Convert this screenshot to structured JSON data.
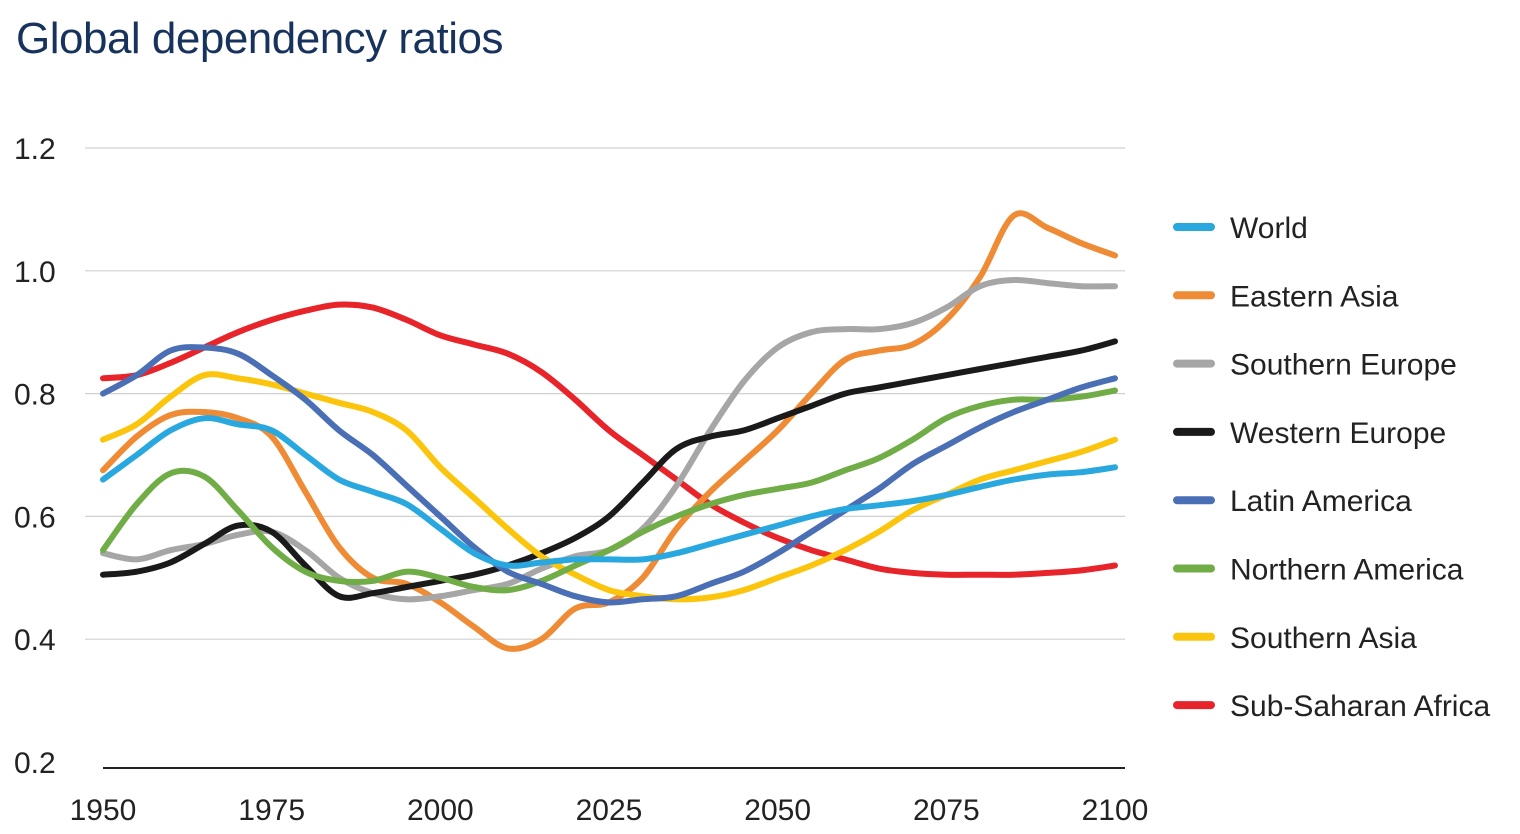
{
  "chart_data": {
    "type": "line",
    "title": "Global dependency ratios",
    "xlabel": "",
    "ylabel": "",
    "xlim": [
      1950,
      2100
    ],
    "ylim": [
      0.2,
      1.2
    ],
    "xticks": [
      "1950",
      "1975",
      "2000",
      "2025",
      "2050",
      "2075",
      "2100"
    ],
    "yticks": [
      "0.2",
      "0.4",
      "0.6",
      "0.8",
      "1.0",
      "1.2"
    ],
    "grid": "horizontal",
    "legend_position": "right",
    "x": [
      1950,
      1955,
      1960,
      1965,
      1970,
      1975,
      1980,
      1985,
      1990,
      1995,
      2000,
      2005,
      2010,
      2015,
      2020,
      2025,
      2030,
      2035,
      2040,
      2045,
      2050,
      2055,
      2060,
      2065,
      2070,
      2075,
      2080,
      2085,
      2090,
      2095,
      2100
    ],
    "series": [
      {
        "name": "World",
        "color": "#29a8e0",
        "values": [
          0.66,
          0.7,
          0.74,
          0.76,
          0.75,
          0.74,
          0.7,
          0.66,
          0.64,
          0.62,
          0.58,
          0.54,
          0.52,
          0.525,
          0.53,
          0.53,
          0.53,
          0.54,
          0.555,
          0.57,
          0.585,
          0.6,
          0.612,
          0.618,
          0.625,
          0.635,
          0.648,
          0.66,
          0.668,
          0.672,
          0.68
        ]
      },
      {
        "name": "Eastern Asia",
        "color": "#ef8a35",
        "values": [
          0.675,
          0.73,
          0.765,
          0.77,
          0.76,
          0.73,
          0.64,
          0.55,
          0.5,
          0.49,
          0.46,
          0.42,
          0.385,
          0.4,
          0.45,
          0.46,
          0.5,
          0.58,
          0.64,
          0.69,
          0.74,
          0.8,
          0.855,
          0.87,
          0.88,
          0.92,
          0.99,
          1.09,
          1.07,
          1.045,
          1.025
        ]
      },
      {
        "name": "Southern Europe",
        "color": "#a6a6a6",
        "values": [
          0.54,
          0.53,
          0.545,
          0.555,
          0.57,
          0.575,
          0.545,
          0.5,
          0.475,
          0.465,
          0.47,
          0.48,
          0.49,
          0.515,
          0.535,
          0.545,
          0.58,
          0.65,
          0.74,
          0.82,
          0.875,
          0.9,
          0.905,
          0.905,
          0.915,
          0.94,
          0.975,
          0.985,
          0.98,
          0.975,
          0.975
        ]
      },
      {
        "name": "Western Europe",
        "color": "#1a1a1a",
        "values": [
          0.505,
          0.51,
          0.525,
          0.555,
          0.585,
          0.575,
          0.52,
          0.47,
          0.475,
          0.485,
          0.495,
          0.505,
          0.52,
          0.54,
          0.565,
          0.6,
          0.655,
          0.71,
          0.73,
          0.74,
          0.76,
          0.78,
          0.8,
          0.81,
          0.82,
          0.83,
          0.84,
          0.85,
          0.86,
          0.87,
          0.885
        ]
      },
      {
        "name": "Latin America",
        "color": "#4a6fb5",
        "values": [
          0.8,
          0.83,
          0.87,
          0.875,
          0.865,
          0.83,
          0.79,
          0.74,
          0.7,
          0.65,
          0.6,
          0.55,
          0.51,
          0.49,
          0.47,
          0.46,
          0.465,
          0.47,
          0.49,
          0.51,
          0.54,
          0.575,
          0.61,
          0.645,
          0.685,
          0.715,
          0.745,
          0.77,
          0.79,
          0.81,
          0.825
        ]
      },
      {
        "name": "Northern America",
        "color": "#70ad47",
        "values": [
          0.545,
          0.62,
          0.67,
          0.665,
          0.61,
          0.55,
          0.51,
          0.495,
          0.495,
          0.51,
          0.5,
          0.485,
          0.48,
          0.495,
          0.52,
          0.545,
          0.575,
          0.6,
          0.62,
          0.635,
          0.645,
          0.655,
          0.675,
          0.695,
          0.725,
          0.76,
          0.78,
          0.79,
          0.79,
          0.795,
          0.805
        ]
      },
      {
        "name": "Southern Asia",
        "color": "#fcc50d",
        "values": [
          0.725,
          0.75,
          0.795,
          0.83,
          0.825,
          0.815,
          0.8,
          0.785,
          0.77,
          0.74,
          0.68,
          0.63,
          0.58,
          0.535,
          0.505,
          0.48,
          0.47,
          0.465,
          0.468,
          0.48,
          0.5,
          0.52,
          0.545,
          0.575,
          0.61,
          0.635,
          0.66,
          0.675,
          0.69,
          0.705,
          0.725
        ]
      },
      {
        "name": "Sub-Saharan Africa",
        "color": "#e8242b",
        "values": [
          0.825,
          0.83,
          0.85,
          0.875,
          0.9,
          0.92,
          0.935,
          0.945,
          0.94,
          0.92,
          0.895,
          0.88,
          0.865,
          0.835,
          0.79,
          0.74,
          0.7,
          0.66,
          0.62,
          0.59,
          0.565,
          0.545,
          0.53,
          0.515,
          0.508,
          0.505,
          0.505,
          0.505,
          0.508,
          0.512,
          0.52
        ]
      }
    ]
  }
}
